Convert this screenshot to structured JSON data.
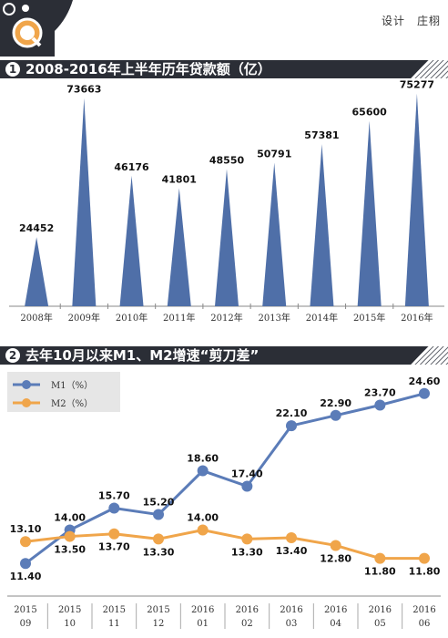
{
  "credit": "设计　庄栩",
  "section1": {
    "number": "1",
    "title": "2008-2016年上半年历年贷款额（亿）"
  },
  "section2": {
    "number": "2",
    "title": "去年10月以来M1、M2增速“剪刀差”"
  },
  "colors": {
    "bar": "#4f6fa8",
    "m1": "#5b7cb8",
    "m2": "#f0a54a",
    "header": "#2b2e36",
    "legend_bg": "#e6e6e6"
  },
  "icon": "magnifier-logo-icon",
  "chart_data": [
    {
      "type": "bar",
      "shape": "triangle",
      "categories": [
        "2008年",
        "2009年",
        "2010年",
        "2011年",
        "2012年",
        "2013年",
        "2014年",
        "2015年",
        "2016年"
      ],
      "values": [
        24452,
        73663,
        46176,
        41801,
        48550,
        50791,
        57381,
        65600,
        75277
      ],
      "title": "2008-2016年上半年历年贷款额（亿）",
      "ylim": [
        0,
        80000
      ]
    },
    {
      "type": "line",
      "categories": [
        [
          "2015",
          "09"
        ],
        [
          "2015",
          "10"
        ],
        [
          "2015",
          "11"
        ],
        [
          "2015",
          "12"
        ],
        [
          "2016",
          "01"
        ],
        [
          "2016",
          "02"
        ],
        [
          "2016",
          "03"
        ],
        [
          "2016",
          "04"
        ],
        [
          "2016",
          "05"
        ],
        [
          "2016",
          "06"
        ]
      ],
      "series": [
        {
          "name": "M1（%）",
          "values": [
            11.4,
            14.0,
            15.7,
            15.2,
            18.6,
            17.4,
            22.1,
            22.9,
            23.7,
            24.6
          ],
          "labels": [
            "11.40",
            "14.00",
            "15.70",
            "15.20",
            "18.60",
            "17.40",
            "22.10",
            "22.90",
            "23.70",
            "24.60"
          ]
        },
        {
          "name": "M2（%）",
          "values": [
            13.1,
            13.5,
            13.7,
            13.3,
            14.0,
            13.3,
            13.4,
            12.8,
            11.8,
            11.8
          ],
          "labels": [
            "13.10",
            "13.50",
            "13.70",
            "13.30",
            "14.00",
            "13.30",
            "13.40",
            "12.80",
            "11.80",
            "11.80"
          ]
        }
      ],
      "title": "去年10月以来M1、M2增速“剪刀差”",
      "ylim": [
        10,
        26
      ],
      "legend": "top-left"
    }
  ]
}
